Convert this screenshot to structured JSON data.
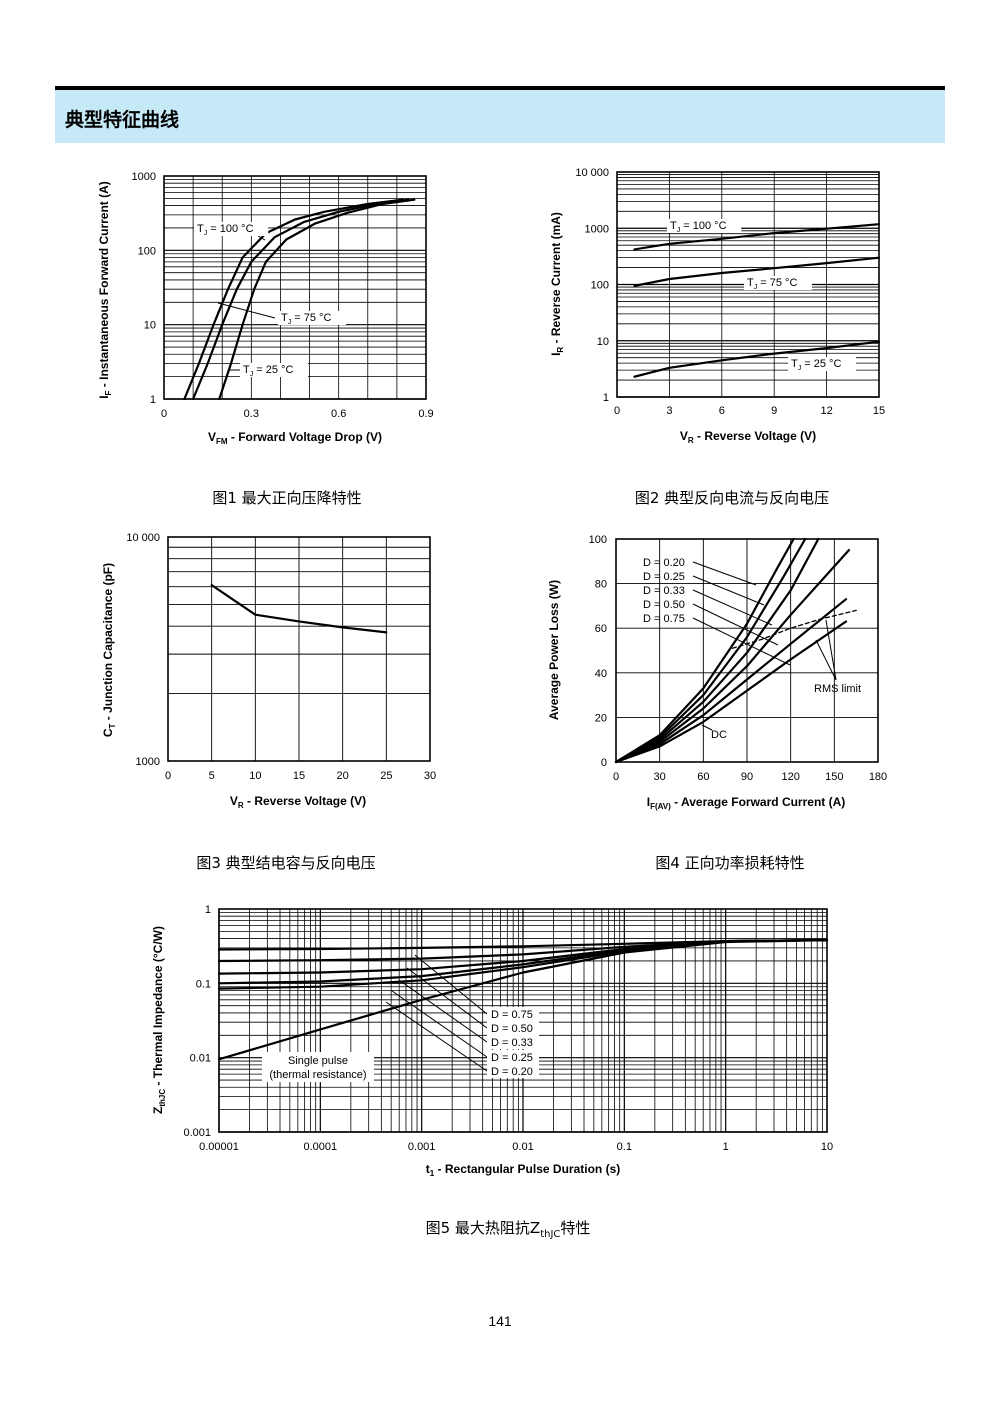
{
  "header": {
    "title": "典型特征曲线"
  },
  "page_number": "141",
  "captions": [
    "图1  最大正向压降特性",
    "图2  典型反向电流与反向电压",
    "图3  典型结电容与反向电压",
    "图4  正向功率损耗特性",
    "图5  最大热阻抗Z_thJC特性"
  ],
  "caption5": {
    "pre": "图5  最大热阻抗Z",
    "sub": "thJC",
    "post": "特性"
  },
  "chart_data": [
    {
      "type": "line",
      "xlabel": {
        "main": "V",
        "sub": "FM",
        "rest": " - Forward Voltage Drop (V)"
      },
      "ylabel": {
        "main": "I",
        "sub": "F",
        "rest": " - Instantaneous Forward Current (A)"
      },
      "xlim": [
        0,
        0.9
      ],
      "ylim": [
        1,
        1000
      ],
      "yscale": "log",
      "xticks": [
        "0",
        "0.3",
        "0.6",
        "0.9"
      ],
      "yticks": [
        "1",
        "10",
        "100",
        "1000"
      ],
      "grid": true,
      "series": [
        {
          "name": "TJ = 100 °C",
          "label": {
            "main": "T",
            "sub": "J",
            "rest": " = 100 °C"
          },
          "points": [
            [
              0.07,
              1
            ],
            [
              0.12,
              3
            ],
            [
              0.17,
              10
            ],
            [
              0.22,
              30
            ],
            [
              0.27,
              80
            ],
            [
              0.35,
              170
            ],
            [
              0.45,
              260
            ],
            [
              0.55,
              330
            ],
            [
              0.7,
              420
            ],
            [
              0.82,
              480
            ]
          ]
        },
        {
          "name": "TJ = 75 °C",
          "label": {
            "main": "T",
            "sub": "J",
            "rest": " = 75 °C"
          },
          "points": [
            [
              0.1,
              1
            ],
            [
              0.15,
              3
            ],
            [
              0.2,
              10
            ],
            [
              0.25,
              30
            ],
            [
              0.3,
              70
            ],
            [
              0.38,
              150
            ],
            [
              0.48,
              240
            ],
            [
              0.6,
              330
            ],
            [
              0.73,
              420
            ],
            [
              0.84,
              480
            ]
          ]
        },
        {
          "name": "TJ = 25 °C",
          "label": {
            "main": "T",
            "sub": "J",
            "rest": " = 25 °C"
          },
          "points": [
            [
              0.19,
              1
            ],
            [
              0.23,
              3
            ],
            [
              0.27,
              10
            ],
            [
              0.31,
              30
            ],
            [
              0.35,
              70
            ],
            [
              0.42,
              140
            ],
            [
              0.52,
              230
            ],
            [
              0.63,
              320
            ],
            [
              0.75,
              420
            ],
            [
              0.86,
              480
            ]
          ]
        }
      ]
    },
    {
      "type": "line",
      "xlabel": {
        "main": "V",
        "sub": "R",
        "rest": " - Reverse Voltage (V)"
      },
      "ylabel": {
        "main": "I",
        "sub": "R",
        "rest": " - Reverse Current (mA)"
      },
      "xlim": [
        0,
        15
      ],
      "ylim": [
        1,
        10000
      ],
      "yscale": "log",
      "xticks": [
        "0",
        "3",
        "6",
        "9",
        "12",
        "15"
      ],
      "yticks": [
        "1",
        "10",
        "100",
        "1000",
        "10 000"
      ],
      "grid": true,
      "series": [
        {
          "name": "TJ = 100 °C",
          "label": {
            "main": "T",
            "sub": "J",
            "rest": " = 100 °C"
          },
          "points": [
            [
              1,
              420
            ],
            [
              3,
              530
            ],
            [
              6,
              650
            ],
            [
              9,
              820
            ],
            [
              12,
              980
            ],
            [
              15,
              1180
            ]
          ]
        },
        {
          "name": "TJ = 75 °C",
          "label": {
            "main": "T",
            "sub": "J",
            "rest": " = 75 °C"
          },
          "points": [
            [
              1,
              95
            ],
            [
              3,
              125
            ],
            [
              6,
              160
            ],
            [
              9,
              195
            ],
            [
              12,
              240
            ],
            [
              15,
              300
            ]
          ]
        },
        {
          "name": "TJ = 25 °C",
          "label": {
            "main": "T",
            "sub": "J",
            "rest": " = 25 °C"
          },
          "points": [
            [
              1,
              2.3
            ],
            [
              3,
              3.3
            ],
            [
              6,
              4.5
            ],
            [
              9,
              5.9
            ],
            [
              12,
              7.4
            ],
            [
              15,
              9.6
            ]
          ]
        }
      ]
    },
    {
      "type": "line",
      "xlabel": {
        "main": "V",
        "sub": "R",
        "rest": " - Reverse Voltage (V)"
      },
      "ylabel": {
        "main": "C",
        "sub": "T",
        "rest": " - Junction Capacitance (pF)"
      },
      "xlim": [
        0,
        30
      ],
      "ylim": [
        1000,
        10000
      ],
      "yscale": "log",
      "xticks": [
        "0",
        "5",
        "10",
        "15",
        "20",
        "25",
        "30"
      ],
      "yticks": [
        "1000",
        "10 000"
      ],
      "grid": true,
      "series": [
        {
          "points": [
            [
              5,
              6100
            ],
            [
              10,
              4500
            ],
            [
              15,
              4200
            ],
            [
              20,
              3950
            ],
            [
              25,
              3750
            ]
          ]
        }
      ]
    },
    {
      "type": "line",
      "xlabel": {
        "main": "I",
        "sub": "F(AV)",
        "rest": " - Average Forward Current (A)"
      },
      "ylabel": {
        "main": "Average Power Loss (W)",
        "sub": "",
        "rest": ""
      },
      "xlim": [
        0,
        180
      ],
      "ylim": [
        0,
        100
      ],
      "xticks": [
        "0",
        "30",
        "60",
        "90",
        "120",
        "150",
        "180"
      ],
      "yticks": [
        "0",
        "20",
        "40",
        "60",
        "80",
        "100"
      ],
      "grid": true,
      "legend": [
        "D = 0.20",
        "D = 0.25",
        "D = 0.33",
        "D = 0.50",
        "D = 0.75"
      ],
      "annotations": [
        "RMS limit",
        "DC"
      ],
      "series": [
        {
          "name": "D = 0.20",
          "points": [
            [
              0,
              0
            ],
            [
              30,
              12
            ],
            [
              60,
              33
            ],
            [
              90,
              62
            ],
            [
              110,
              86
            ],
            [
              122,
              100
            ]
          ]
        },
        {
          "name": "D = 0.25",
          "points": [
            [
              0,
              0
            ],
            [
              30,
              11
            ],
            [
              60,
              30
            ],
            [
              90,
              56
            ],
            [
              115,
              83
            ],
            [
              130,
              100
            ]
          ]
        },
        {
          "name": "D = 0.33",
          "points": [
            [
              0,
              0
            ],
            [
              30,
              10
            ],
            [
              60,
              27
            ],
            [
              90,
              49
            ],
            [
              120,
              77
            ],
            [
              139,
              100
            ]
          ]
        },
        {
          "name": "D = 0.50",
          "points": [
            [
              0,
              0
            ],
            [
              30,
              9
            ],
            [
              60,
              24
            ],
            [
              90,
              43
            ],
            [
              120,
              66
            ],
            [
              160,
              95
            ]
          ]
        },
        {
          "name": "D = 0.75",
          "points": [
            [
              0,
              0
            ],
            [
              30,
              8
            ],
            [
              60,
              21
            ],
            [
              90,
              37
            ],
            [
              120,
              53
            ],
            [
              158,
              73
            ]
          ]
        },
        {
          "name": "DC",
          "points": [
            [
              0,
              0
            ],
            [
              30,
              7
            ],
            [
              60,
              18
            ],
            [
              90,
              32
            ],
            [
              120,
              46
            ],
            [
              158,
              63
            ]
          ]
        },
        {
          "name": "RMS limit",
          "dashed": true,
          "points": [
            [
              80,
              51
            ],
            [
              100,
              55
            ],
            [
              120,
              60
            ],
            [
              140,
              64
            ],
            [
              165,
              68
            ]
          ]
        }
      ]
    },
    {
      "type": "line",
      "xlabel": {
        "main": "t",
        "sub": "1",
        "rest": " - Rectangular Pulse Duration (s)"
      },
      "ylabel": {
        "main": "Z",
        "sub": "thJC",
        "rest": " - Thermal Impedance (°C/W)"
      },
      "xlim": [
        1e-05,
        10
      ],
      "ylim": [
        0.001,
        1
      ],
      "xscale": "log",
      "yscale": "log",
      "xticks": [
        "0.00001",
        "0.0001",
        "0.001",
        "0.01",
        "0.1",
        "1",
        "10"
      ],
      "yticks": [
        "0.001",
        "0.01",
        "0.1",
        "1"
      ],
      "grid": true,
      "legend": [
        "D = 0.75",
        "D = 0.50",
        "D = 0.33",
        "D = 0.25",
        "D = 0.20"
      ],
      "annotations": [
        "Single pulse",
        "(thermal resistance)"
      ],
      "series": [
        {
          "name": "D = 0.75",
          "points": [
            [
              1e-05,
              0.285
            ],
            [
              0.0001,
              0.29
            ],
            [
              0.001,
              0.3
            ],
            [
              0.01,
              0.315
            ],
            [
              0.1,
              0.34
            ],
            [
              1,
              0.37
            ],
            [
              10,
              0.38
            ]
          ]
        },
        {
          "name": "D = 0.50",
          "points": [
            [
              1e-05,
              0.2
            ],
            [
              0.0001,
              0.205
            ],
            [
              0.001,
              0.215
            ],
            [
              0.01,
              0.245
            ],
            [
              0.1,
              0.31
            ],
            [
              1,
              0.37
            ],
            [
              10,
              0.38
            ]
          ]
        },
        {
          "name": "D = 0.33",
          "points": [
            [
              1e-05,
              0.135
            ],
            [
              0.0001,
              0.14
            ],
            [
              0.001,
              0.155
            ],
            [
              0.01,
              0.2
            ],
            [
              0.1,
              0.29
            ],
            [
              1,
              0.37
            ],
            [
              10,
              0.38
            ]
          ]
        },
        {
          "name": "D = 0.25",
          "points": [
            [
              1e-05,
              0.1
            ],
            [
              0.0001,
              0.106
            ],
            [
              0.001,
              0.125
            ],
            [
              0.01,
              0.18
            ],
            [
              0.1,
              0.28
            ],
            [
              1,
              0.37
            ],
            [
              10,
              0.38
            ]
          ]
        },
        {
          "name": "D = 0.20",
          "points": [
            [
              1e-05,
              0.085
            ],
            [
              0.0001,
              0.09
            ],
            [
              0.001,
              0.11
            ],
            [
              0.01,
              0.165
            ],
            [
              0.1,
              0.27
            ],
            [
              1,
              0.37
            ],
            [
              10,
              0.38
            ]
          ]
        },
        {
          "name": "Single pulse",
          "points": [
            [
              1e-05,
              0.0095
            ],
            [
              0.0001,
              0.024
            ],
            [
              0.001,
              0.06
            ],
            [
              0.01,
              0.14
            ],
            [
              0.1,
              0.26
            ],
            [
              1,
              0.36
            ],
            [
              10,
              0.38
            ]
          ]
        }
      ]
    }
  ]
}
